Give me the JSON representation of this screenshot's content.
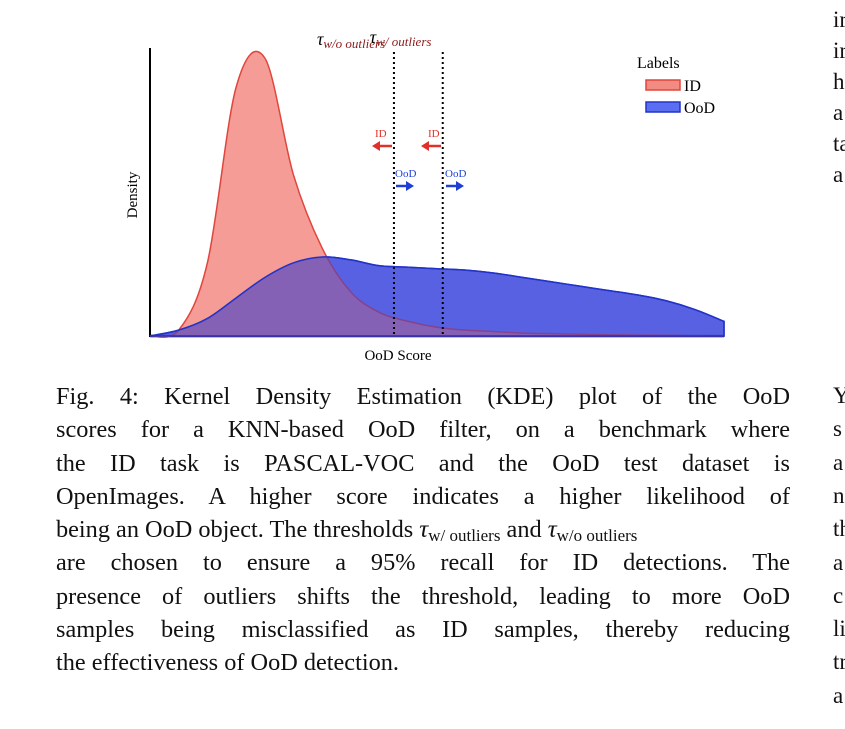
{
  "figure": {
    "chart_data": {
      "type": "area",
      "xlabel": "OoD Score",
      "ylabel": "Density",
      "legend": {
        "title": "Labels",
        "position": "top-right",
        "entries": [
          {
            "name": "ID",
            "fill": "#f28b82",
            "stroke": "#e0463d"
          },
          {
            "name": "OoD",
            "fill": "#5b6ef2",
            "stroke": "#2233c8"
          }
        ]
      },
      "x": [
        0,
        0.05,
        0.1,
        0.15,
        0.2,
        0.25,
        0.3,
        0.35,
        0.4,
        0.45,
        0.5,
        0.55,
        0.6,
        0.65,
        0.7,
        0.75,
        0.8,
        0.85,
        0.9,
        0.95,
        1.0
      ],
      "series": [
        {
          "name": "ID",
          "values": [
            0.0,
            0.02,
            0.25,
            0.85,
            0.95,
            0.55,
            0.3,
            0.15,
            0.08,
            0.05,
            0.03,
            0.02,
            0.015,
            0.01,
            0.008,
            0.006,
            0.004,
            0.003,
            0.002,
            0.001,
            0.0
          ]
        },
        {
          "name": "OoD",
          "values": [
            0.0,
            0.02,
            0.06,
            0.13,
            0.2,
            0.25,
            0.27,
            0.26,
            0.24,
            0.235,
            0.23,
            0.225,
            0.215,
            0.2,
            0.185,
            0.17,
            0.155,
            0.14,
            0.12,
            0.09,
            0.05
          ]
        }
      ],
      "thresholds": [
        {
          "label_sym": "τ",
          "label_sub": "w/o outliers",
          "x": 0.425,
          "arrows": {
            "left": "ID",
            "right": "OoD"
          }
        },
        {
          "label_sym": "τ",
          "label_sub": "w/ outliers",
          "x": 0.51,
          "arrows": {
            "left": "ID",
            "right": "OoD"
          }
        }
      ],
      "colors": {
        "id_arrow": "#e0302a",
        "ood_arrow": "#1d3fd6"
      }
    }
  },
  "caption": {
    "line1": "Fig. 4: Kernel Density Estimation (KDE) plot of the OoD",
    "line2": "scores for a KNN-based OoD filter, on a benchmark where",
    "line3": "the ID task is PASCAL-VOC and the OoD test dataset is",
    "line4": "OpenImages. A higher score indicates a higher likelihood of",
    "line5a": "being an OoD object. The thresholds ",
    "tau1": "τ",
    "tau1_sub": "w/ outliers",
    "and": " and ",
    "tau2": "τ",
    "tau2_sub": "w/o outliers",
    "line6": "are chosen to ensure a 95% recall for ID detections. The",
    "line7": "presence of outliers shifts the threshold, leading to more OoD",
    "line8": "samples being misclassified as ID samples, thereby reducing",
    "line9": "the effectiveness of OoD detection."
  },
  "right_column": {
    "top": [
      "ir",
      "ir",
      "h",
      "a",
      "ta",
      "a"
    ],
    "bottom": [
      "Y",
      "s",
      "a",
      "n",
      "th",
      "a",
      "c",
      "li",
      "tr",
      "a"
    ]
  }
}
